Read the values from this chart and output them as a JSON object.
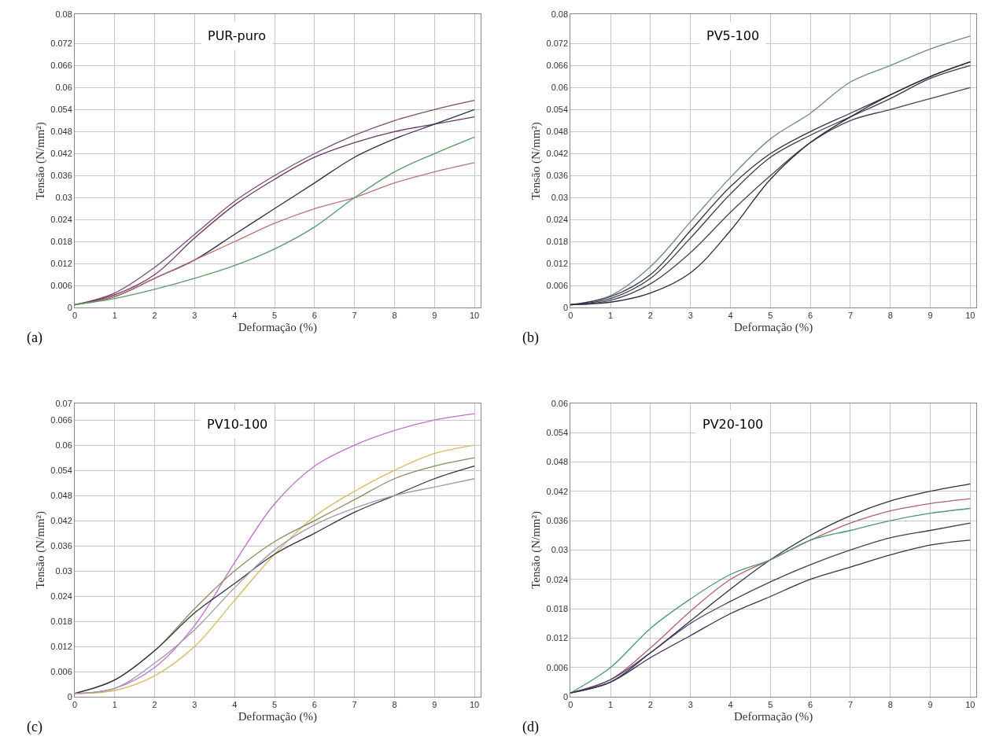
{
  "chart_data": [
    {
      "type": "line",
      "title": "PUR-puro",
      "xlabel": "Deformação (%)",
      "ylabel": "Tensão (N/mm²)",
      "annotations": [
        "(a)"
      ],
      "x": [
        0,
        1,
        2,
        3,
        4,
        5,
        6,
        7,
        8,
        9,
        10
      ],
      "xlim": [
        0,
        10.15
      ],
      "xticks": [
        0,
        1,
        2,
        3,
        4,
        5,
        6,
        7,
        8,
        9,
        10
      ],
      "ylim": [
        0,
        0.08
      ],
      "yticks": [
        0,
        0.006,
        0.012,
        0.018,
        0.024,
        0.03,
        0.036,
        0.042,
        0.048,
        0.054,
        0.06,
        0.066,
        0.072,
        0.08
      ],
      "grid": true,
      "series": [
        {
          "color": "#7a4a7a",
          "values": [
            0.0008,
            0.004,
            0.011,
            0.02,
            0.029,
            0.036,
            0.042,
            0.047,
            0.051,
            0.054,
            0.0565
          ]
        },
        {
          "color": "#6a3a5a",
          "values": [
            0.0008,
            0.0035,
            0.009,
            0.019,
            0.028,
            0.035,
            0.041,
            0.045,
            0.048,
            0.05,
            0.052
          ]
        },
        {
          "color": "#2e2e4e",
          "values": [
            0.0008,
            0.003,
            0.008,
            0.013,
            0.02,
            0.027,
            0.034,
            0.041,
            0.046,
            0.05,
            0.054
          ]
        },
        {
          "color": "#c07070",
          "values": [
            0.0008,
            0.003,
            0.008,
            0.013,
            0.018,
            0.023,
            0.027,
            0.03,
            0.034,
            0.037,
            0.0395
          ]
        },
        {
          "color": "#5a9a6a",
          "values": [
            0.0008,
            0.0025,
            0.005,
            0.008,
            0.0115,
            0.016,
            0.022,
            0.03,
            0.037,
            0.042,
            0.0465
          ]
        }
      ]
    },
    {
      "type": "line",
      "title": "PV5-100",
      "xlabel": "Deformação (%)",
      "ylabel": "Tensão (N/mm²)",
      "annotations": [
        "(b)"
      ],
      "x": [
        0,
        1,
        2,
        3,
        4,
        5,
        6,
        7,
        8,
        9,
        10
      ],
      "xlim": [
        0,
        10.15
      ],
      "xticks": [
        0,
        1,
        2,
        3,
        4,
        5,
        6,
        7,
        8,
        9,
        10
      ],
      "ylim": [
        0,
        0.08
      ],
      "yticks": [
        0,
        0.006,
        0.012,
        0.018,
        0.024,
        0.03,
        0.036,
        0.042,
        0.048,
        0.054,
        0.06,
        0.066,
        0.072,
        0.08
      ],
      "grid": true,
      "series": [
        {
          "color": "#6e8a8a",
          "values": [
            0.0008,
            0.0033,
            0.0112,
            0.0234,
            0.0355,
            0.046,
            0.053,
            0.0615,
            0.066,
            0.0705,
            0.074
          ]
        },
        {
          "color": "#333344",
          "values": [
            0.0008,
            0.003,
            0.009,
            0.021,
            0.033,
            0.042,
            0.048,
            0.053,
            0.058,
            0.063,
            0.067
          ]
        },
        {
          "color": "#3a3a4a",
          "values": [
            0.0008,
            0.0025,
            0.008,
            0.019,
            0.031,
            0.041,
            0.047,
            0.052,
            0.057,
            0.0625,
            0.066
          ]
        },
        {
          "color": "#444455",
          "values": [
            0.0008,
            0.002,
            0.0065,
            0.015,
            0.026,
            0.036,
            0.045,
            0.051,
            0.054,
            0.057,
            0.06
          ]
        },
        {
          "color": "#2a2a3a",
          "values": [
            0.0008,
            0.0015,
            0.004,
            0.0095,
            0.021,
            0.035,
            0.045,
            0.052,
            0.058,
            0.063,
            0.067
          ]
        }
      ]
    },
    {
      "type": "line",
      "title": "PV10-100",
      "xlabel": "Deformação (%)",
      "ylabel": "Tensão (N/mm²)",
      "annotations": [
        "(c)"
      ],
      "x": [
        0,
        1,
        2,
        3,
        4,
        5,
        6,
        7,
        8,
        9,
        10
      ],
      "xlim": [
        0,
        10.15
      ],
      "xticks": [
        0,
        1,
        2,
        3,
        4,
        5,
        6,
        7,
        8,
        9,
        10
      ],
      "ylim": [
        0,
        0.07
      ],
      "yticks": [
        0,
        0.006,
        0.012,
        0.018,
        0.024,
        0.03,
        0.036,
        0.042,
        0.048,
        0.054,
        0.06,
        0.066,
        0.07
      ],
      "grid": true,
      "series": [
        {
          "color": "#c070c8",
          "values": [
            0.0008,
            0.002,
            0.007,
            0.017,
            0.032,
            0.046,
            0.055,
            0.06,
            0.0635,
            0.066,
            0.0675
          ]
        },
        {
          "color": "#d8b860",
          "values": [
            0.0008,
            0.0015,
            0.005,
            0.012,
            0.023,
            0.034,
            0.043,
            0.049,
            0.054,
            0.058,
            0.06
          ]
        },
        {
          "color": "#8a8a60",
          "values": [
            0.0008,
            0.004,
            0.011,
            0.021,
            0.03,
            0.037,
            0.042,
            0.047,
            0.052,
            0.055,
            0.057
          ]
        },
        {
          "color": "#303040",
          "values": [
            0.0008,
            0.004,
            0.011,
            0.02,
            0.027,
            0.034,
            0.039,
            0.044,
            0.048,
            0.052,
            0.055
          ]
        },
        {
          "color": "#a098b0",
          "values": [
            0.0008,
            0.002,
            0.008,
            0.016,
            0.026,
            0.035,
            0.041,
            0.045,
            0.048,
            0.05,
            0.052
          ]
        }
      ]
    },
    {
      "type": "line",
      "title": "PV20-100",
      "xlabel": "Deformação (%)",
      "ylabel": "Tensão (N/mm²)",
      "annotations": [
        "(d)"
      ],
      "x": [
        0,
        1,
        2,
        3,
        4,
        5,
        6,
        7,
        8,
        9,
        10
      ],
      "xlim": [
        0,
        10.15
      ],
      "xticks": [
        0,
        1,
        2,
        3,
        4,
        5,
        6,
        7,
        8,
        9,
        10
      ],
      "ylim": [
        0,
        0.06
      ],
      "yticks": [
        0,
        0.006,
        0.012,
        0.018,
        0.024,
        0.03,
        0.036,
        0.042,
        0.048,
        0.054,
        0.06
      ],
      "grid": true,
      "series": [
        {
          "color": "#2e2e4e",
          "values": [
            0.0008,
            0.003,
            0.009,
            0.0155,
            0.022,
            0.028,
            0.033,
            0.037,
            0.04,
            0.042,
            0.0435
          ]
        },
        {
          "color": "#b06070",
          "values": [
            0.0008,
            0.0035,
            0.01,
            0.0175,
            0.024,
            0.028,
            0.032,
            0.0355,
            0.038,
            0.0395,
            0.0405
          ]
        },
        {
          "color": "#4a9a6a",
          "values": [
            0.0008,
            0.006,
            0.014,
            0.02,
            0.025,
            0.028,
            0.032,
            0.034,
            0.036,
            0.0375,
            0.0385
          ]
        },
        {
          "color": "#4a3a5a",
          "values": [
            0.0008,
            0.0035,
            0.009,
            0.015,
            0.0195,
            0.0235,
            0.027,
            0.03,
            0.0325,
            0.034,
            0.0355
          ]
        },
        {
          "color": "#3a3050",
          "values": [
            0.0008,
            0.003,
            0.008,
            0.0125,
            0.017,
            0.0205,
            0.024,
            0.0265,
            0.029,
            0.031,
            0.032
          ]
        }
      ]
    }
  ]
}
